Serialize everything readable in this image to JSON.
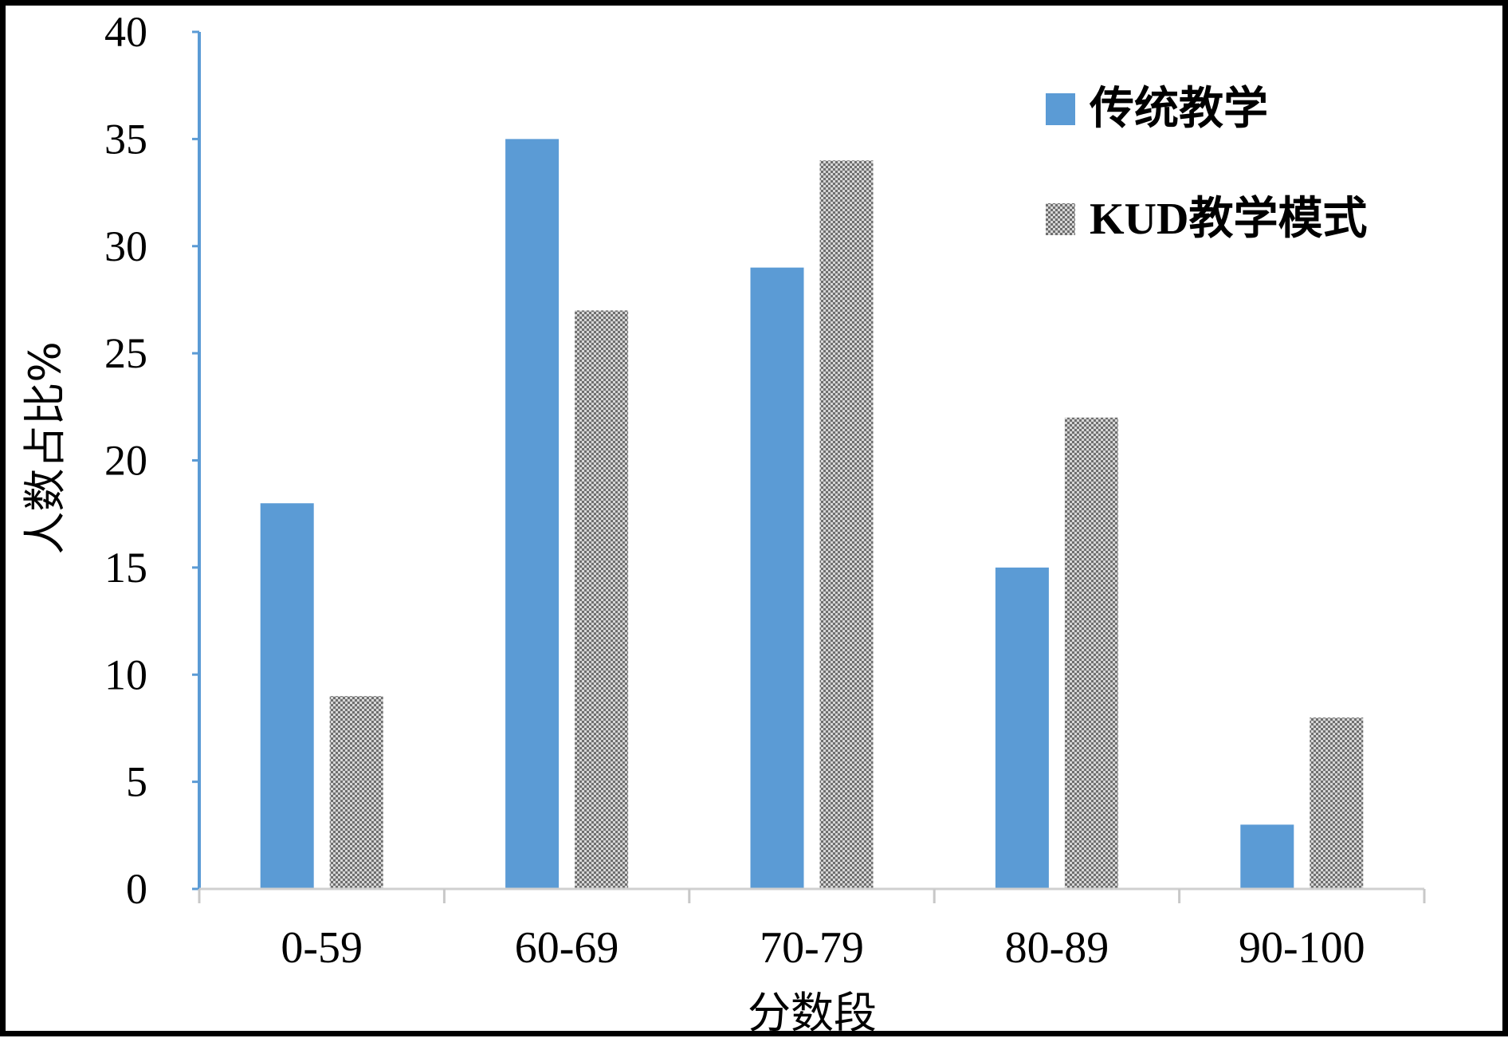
{
  "chart_data": {
    "type": "bar",
    "categories": [
      "0-59",
      "60-69",
      "70-79",
      "80-89",
      "90-100"
    ],
    "series": [
      {
        "name": "传统教学",
        "values": [
          18,
          35,
          29,
          15,
          3
        ],
        "color": "#5b9bd5",
        "pattern": "solid"
      },
      {
        "name": "KUD教学模式",
        "values": [
          9,
          27,
          34,
          22,
          8
        ],
        "color": "#8c8c8c",
        "pattern": "checker"
      }
    ],
    "title": "",
    "xlabel": "分数段",
    "ylabel": "人数占比%",
    "ylim": [
      0,
      40
    ],
    "yticks": [
      0,
      5,
      10,
      15,
      20,
      25,
      30,
      35,
      40
    ],
    "grid": false,
    "legend": "top-right",
    "axis_color": "#5b9bd5"
  }
}
